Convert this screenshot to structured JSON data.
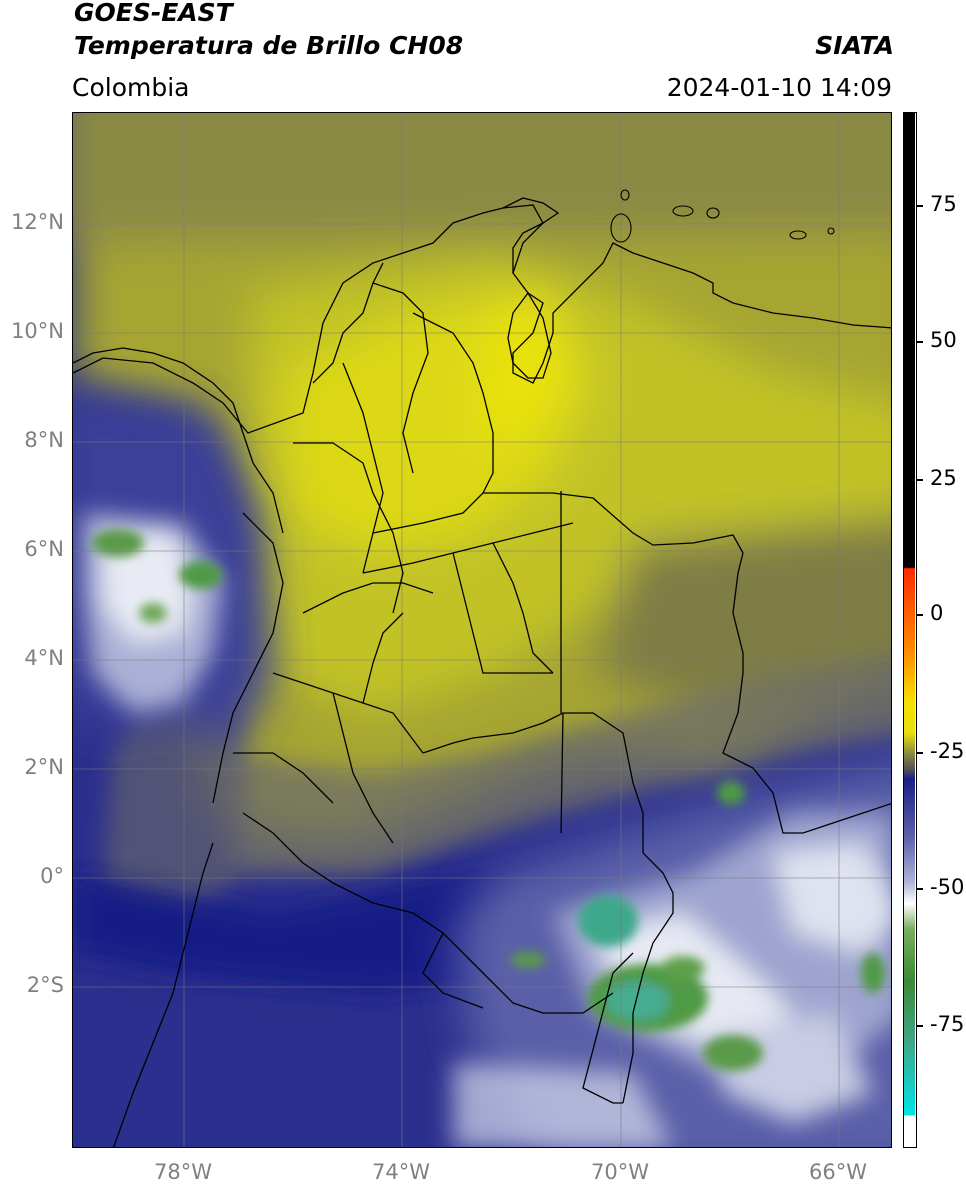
{
  "header": {
    "satellite": "GOES-EAST",
    "product": "Temperatura de Brillo CH08",
    "region": "Colombia",
    "agency": "SIATA",
    "datetime": "2024-01-10 14:09"
  },
  "map": {
    "lat_labels": [
      "12°N",
      "10°N",
      "8°N",
      "6°N",
      "4°N",
      "2°N",
      "0°",
      "2°S"
    ],
    "lon_labels": [
      "78°W",
      "74°W",
      "70°W",
      "66°W"
    ],
    "colors": {
      "yellow": "#e6e00e",
      "olive": "#bdbc2a",
      "dark_olive": "#8c8a3c",
      "gray": "#6c6c68",
      "navy": "#1c1f8a",
      "blue": "#3f4598",
      "light_blue": "#8f96c6",
      "white": "#eef0f6",
      "green": "#4a8f3c",
      "teal": "#3fa888"
    }
  },
  "colorbar": {
    "ticks": [
      "75",
      "50",
      "25",
      "0",
      "-25",
      "-50",
      "-75"
    ]
  }
}
